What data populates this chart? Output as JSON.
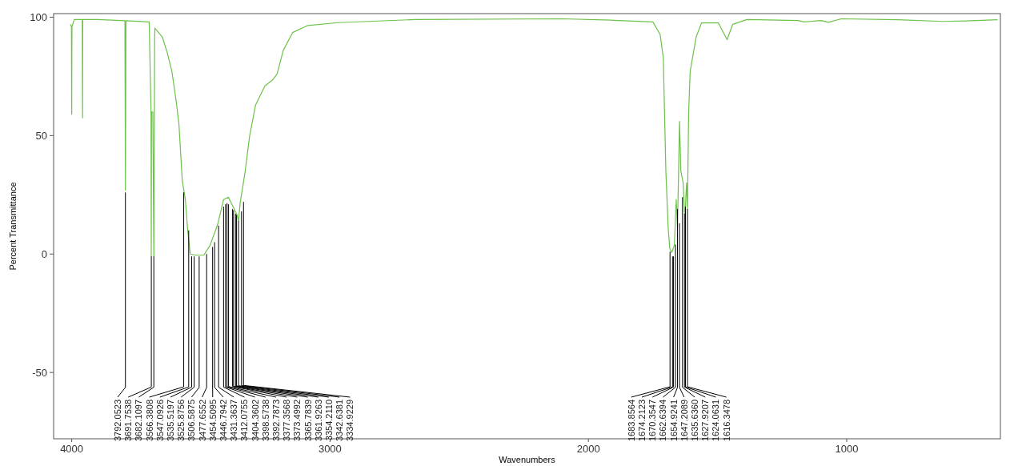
{
  "chart_data": {
    "type": "line",
    "xlabel": "Wavenumbers",
    "ylabel": "Percent Transmittance",
    "xlim": [
      4070,
      405
    ],
    "ylim": [
      -78,
      101.5
    ],
    "xticks": [
      4000,
      3000,
      2000,
      1000
    ],
    "yticks": [
      100,
      50,
      0,
      -50
    ],
    "series": [
      {
        "color": "#6cc24a",
        "x": [
          4005,
          4001,
          4000,
          3999,
          3990,
          3959,
          3958,
          3957,
          3900,
          3794,
          3792,
          3790,
          3700,
          3693,
          3692,
          3691,
          3686,
          3682,
          3679,
          3678,
          3649,
          3630,
          3612,
          3595,
          3585,
          3572,
          3566,
          3560,
          3551,
          3541,
          3520,
          3489,
          3465,
          3435,
          3412,
          3394,
          3382,
          3360,
          3354.211,
          3348,
          3329,
          3311,
          3288,
          3252,
          3222,
          3205,
          3181,
          3145,
          3086,
          2969,
          2672,
          2102,
          1904,
          1750,
          1722,
          1710,
          1705,
          1700,
          1691,
          1685,
          1677,
          1667,
          1660,
          1655,
          1647,
          1642,
          1633,
          1627.9207,
          1624.0631,
          1620,
          1616.3478,
          1612,
          1606,
          1583,
          1562,
          1497,
          1463,
          1441,
          1386,
          1188,
          1165,
          1099,
          1071,
          1021,
          802,
          629,
          537,
          416
        ],
        "values": [
          97,
          96,
          59,
          96,
          99,
          99,
          57.5,
          99,
          99,
          98.5,
          27,
          98.5,
          98,
          60,
          -1,
          60,
          60,
          -1,
          90,
          95.4,
          91.6,
          85,
          77,
          64,
          55,
          31,
          27,
          23,
          10,
          0,
          -0.5,
          -0.5,
          3.5,
          12.5,
          23,
          24,
          21.5,
          16.5,
          14,
          21.5,
          34.5,
          50,
          63,
          71,
          73.5,
          76,
          86,
          93.5,
          96.5,
          97.7,
          99,
          99.3,
          98.7,
          98,
          92.6,
          83,
          59,
          35,
          11,
          2.4,
          0.7,
          3.7,
          23,
          11,
          56,
          35,
          30,
          17,
          20,
          30,
          19,
          59,
          77,
          91.5,
          97.6,
          97.6,
          90.5,
          97,
          99,
          98.6,
          98,
          98.6,
          97.8,
          99.3,
          98.9,
          98.2,
          98.4,
          98.9
        ]
      }
    ],
    "annotations": [
      {
        "text": "3792.0523",
        "x": 3792.0523,
        "y": 26
      },
      {
        "text": "3691.7538",
        "x": 3691.7538,
        "y": -1
      },
      {
        "text": "3682.1097",
        "x": 3682.1097,
        "y": -1
      },
      {
        "text": "3566.3808",
        "x": 3566.3808,
        "y": 26
      },
      {
        "text": "3547.0926",
        "x": 3547.0926,
        "y": 10
      },
      {
        "text": "3535.5197",
        "x": 3535.5197,
        "y": -1
      },
      {
        "text": "3525.8756",
        "x": 3525.8756,
        "y": -1
      },
      {
        "text": "3506.5875",
        "x": 3506.5875,
        "y": -1
      },
      {
        "text": "3477.6552",
        "x": 3477.6552,
        "y": 0
      },
      {
        "text": "3454.5095",
        "x": 3454.5095,
        "y": 3
      },
      {
        "text": "3446.7942",
        "x": 3446.7942,
        "y": 5
      },
      {
        "text": "3431.3637",
        "x": 3431.3637,
        "y": 12
      },
      {
        "text": "3412.0755",
        "x": 3412.0755,
        "y": 20
      },
      {
        "text": "3404.3602",
        "x": 3404.3602,
        "y": 21
      },
      {
        "text": "3398.5738",
        "x": 3398.5738,
        "y": 21.5
      },
      {
        "text": "3392.7873",
        "x": 3392.7873,
        "y": 21
      },
      {
        "text": "3377.3568",
        "x": 3377.3568,
        "y": 19
      },
      {
        "text": "3373.4992",
        "x": 3373.4992,
        "y": 18.5
      },
      {
        "text": "3365.7839",
        "x": 3365.7839,
        "y": 17
      },
      {
        "text": "3361.9263",
        "x": 3361.9263,
        "y": 16.5
      },
      {
        "text": "3354.2110",
        "x": 3354.211,
        "y": 14
      },
      {
        "text": "3342.6381",
        "x": 3342.6381,
        "y": 18
      },
      {
        "text": "3334.9229",
        "x": 3334.9229,
        "y": 22
      },
      {
        "text": "1683.8564",
        "x": 1683.8564,
        "y": 1
      },
      {
        "text": "1674.2123",
        "x": 1674.2123,
        "y": -1
      },
      {
        "text": "1670.3547",
        "x": 1670.3547,
        "y": -1
      },
      {
        "text": "1662.6394",
        "x": 1662.6394,
        "y": 4
      },
      {
        "text": "1654.9241",
        "x": 1654.9241,
        "y": 19
      },
      {
        "text": "1647.2089",
        "x": 1647.2089,
        "y": 13
      },
      {
        "text": "1635.6360",
        "x": 1635.636,
        "y": 24
      },
      {
        "text": "1627.9207",
        "x": 1627.9207,
        "y": 17
      },
      {
        "text": "1624.0631",
        "x": 1624.0631,
        "y": 20
      },
      {
        "text": "1616.3478",
        "x": 1616.3478,
        "y": 19
      }
    ]
  }
}
